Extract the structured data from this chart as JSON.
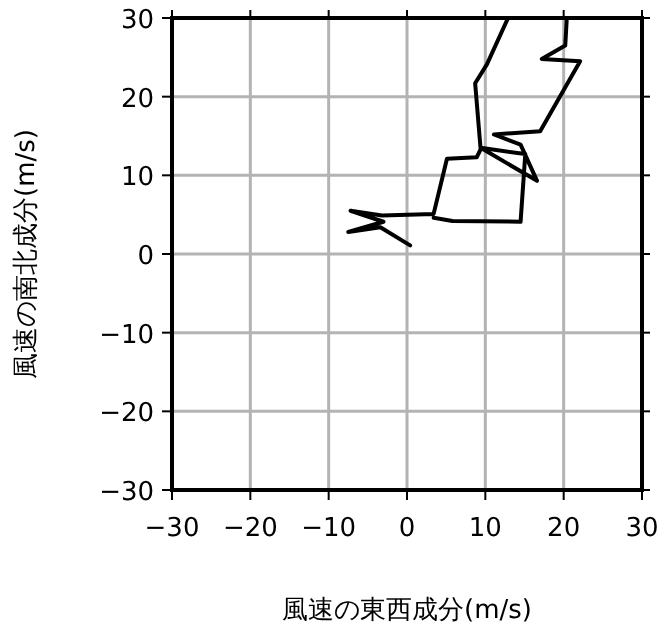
{
  "chart_data": {
    "type": "line",
    "xlabel": "風速の東西成分(m/s)",
    "ylabel": "風速の南北成分(m/s)",
    "x": [
      0.4,
      -3.4,
      -7.5,
      -3.0,
      -7.2,
      -3.2,
      3.4,
      5.1,
      8.9,
      9.4,
      8.7,
      10.2,
      12.9,
      null,
      3.4,
      5.8,
      14.5,
      15.1,
      9.4,
      16.6,
      14.5,
      11.1,
      17.0,
      22.1,
      17.2,
      20.2,
      20.4
    ],
    "series": [
      {
        "color": "#000000",
        "values": [
          1.1,
          3.4,
          2.8,
          4.1,
          5.5,
          4.9,
          5.1,
          12.1,
          12.3,
          13.3,
          21.7,
          24.1,
          30,
          null,
          4.6,
          4.2,
          4.1,
          12.7,
          13.5,
          9.3,
          13.9,
          15.2,
          15.6,
          24.5,
          24.8,
          26.5,
          30
        ]
      }
    ],
    "xlim": [
      -30,
      30
    ],
    "ylim": [
      -30,
      30
    ],
    "xticks": [
      -30,
      -20,
      -10,
      0,
      10,
      20,
      30
    ],
    "yticks": [
      -30,
      -20,
      -10,
      0,
      10,
      20,
      30
    ],
    "grid": true,
    "marker": "none",
    "line_style": "solid"
  }
}
